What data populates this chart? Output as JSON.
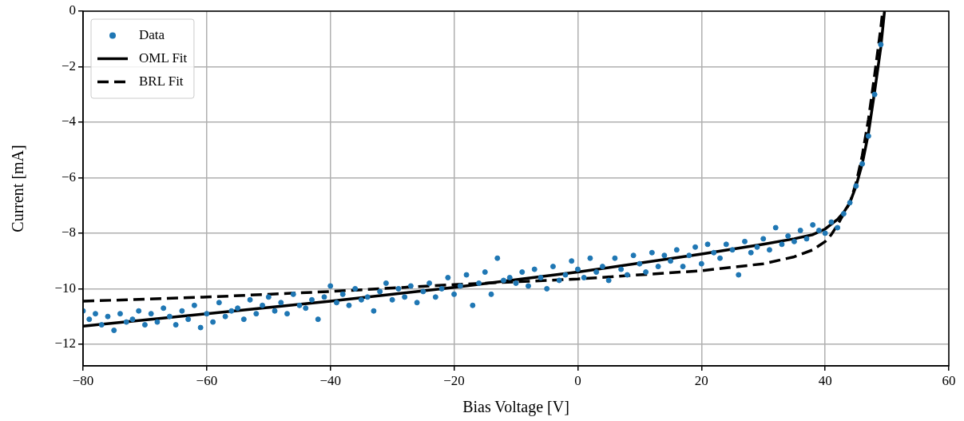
{
  "chart_data": {
    "type": "scatter",
    "xlabel": "Bias Voltage [V]",
    "ylabel": "Current [mA]",
    "xlim": [
      -80,
      60
    ],
    "ylim": [
      -12.78,
      0
    ],
    "xticks": [
      {
        "value": -80,
        "label": "−80"
      },
      {
        "value": -60,
        "label": "−60"
      },
      {
        "value": -40,
        "label": "−40"
      },
      {
        "value": -20,
        "label": "−20"
      },
      0,
      20,
      40,
      60
    ],
    "yticks": [
      {
        "value": -12,
        "label": "−12"
      },
      {
        "value": -10,
        "label": "−10"
      },
      {
        "value": -8,
        "label": "−8"
      },
      {
        "value": -6,
        "label": "−6"
      },
      {
        "value": -4,
        "label": "−4"
      },
      {
        "value": -2,
        "label": "−2"
      },
      0
    ],
    "grid": true,
    "legend": "top left",
    "series": [
      {
        "name": "Data",
        "type": "scatter",
        "color": "#1f77b4",
        "marker": "circle",
        "x": [
          -80,
          -79,
          -78,
          -77,
          -76,
          -75,
          -74,
          -73,
          -72,
          -71,
          -70,
          -69,
          -68,
          -67,
          -66,
          -65,
          -64,
          -63,
          -62,
          -61,
          -60,
          -59,
          -58,
          -57,
          -56,
          -55,
          -54,
          -53,
          -52,
          -51,
          -50,
          -49,
          -48,
          -47,
          -46,
          -45,
          -44,
          -43,
          -42,
          -41,
          -40,
          -39,
          -38,
          -37,
          -36,
          -35,
          -34,
          -33,
          -32,
          -31,
          -30,
          -29,
          -28,
          -27,
          -26,
          -25,
          -24,
          -23,
          -22,
          -21,
          -20,
          -19,
          -18,
          -17,
          -16,
          -15,
          -14,
          -13,
          -12,
          -11,
          -10,
          -9,
          -8,
          -7,
          -6,
          -5,
          -4,
          -3,
          -2,
          -1,
          0,
          1,
          2,
          3,
          4,
          5,
          6,
          7,
          8,
          9,
          10,
          11,
          12,
          13,
          14,
          15,
          16,
          17,
          18,
          19,
          20,
          21,
          22,
          23,
          24,
          25,
          26,
          27,
          28,
          29,
          30,
          31,
          32,
          33,
          34,
          35,
          36,
          37,
          38,
          39,
          40,
          41,
          42,
          43,
          44,
          45,
          46,
          47,
          48,
          49
        ],
        "values": [
          -10.8,
          -11.1,
          -10.9,
          -11.3,
          -11.0,
          -11.5,
          -10.9,
          -11.2,
          -11.1,
          -10.8,
          -11.3,
          -10.9,
          -11.2,
          -10.7,
          -11.0,
          -11.3,
          -10.8,
          -11.1,
          -10.6,
          -11.4,
          -10.9,
          -11.2,
          -10.5,
          -11.0,
          -10.8,
          -10.7,
          -11.1,
          -10.4,
          -10.9,
          -10.6,
          -10.3,
          -10.8,
          -10.5,
          -10.9,
          -10.2,
          -10.6,
          -10.7,
          -10.4,
          -11.1,
          -10.3,
          -9.9,
          -10.5,
          -10.2,
          -10.6,
          -10.0,
          -10.4,
          -10.3,
          -10.8,
          -10.1,
          -9.8,
          -10.4,
          -10.0,
          -10.3,
          -9.9,
          -10.5,
          -10.1,
          -9.8,
          -10.3,
          -10.0,
          -9.6,
          -10.2,
          -9.9,
          -9.5,
          -10.6,
          -9.8,
          -9.4,
          -10.2,
          -8.9,
          -9.7,
          -9.6,
          -9.8,
          -9.4,
          -9.9,
          -9.3,
          -9.6,
          -10.0,
          -9.2,
          -9.7,
          -9.5,
          -9.0,
          -9.3,
          -9.6,
          -8.9,
          -9.4,
          -9.2,
          -9.7,
          -8.9,
          -9.3,
          -9.5,
          -8.8,
          -9.1,
          -9.4,
          -8.7,
          -9.2,
          -8.8,
          -9.0,
          -8.6,
          -9.2,
          -8.8,
          -8.5,
          -9.1,
          -8.4,
          -8.7,
          -8.9,
          -8.4,
          -8.6,
          -9.5,
          -8.3,
          -8.7,
          -8.5,
          -8.2,
          -8.6,
          -7.8,
          -8.4,
          -8.1,
          -8.3,
          -7.9,
          -8.2,
          -7.7,
          -7.9,
          -8.0,
          -7.6,
          -7.8,
          -7.3,
          -6.9,
          -6.3,
          -5.5,
          -4.5,
          -3.0,
          -1.2
        ]
      },
      {
        "name": "OML Fit",
        "type": "line",
        "color": "#000000",
        "marker": "none",
        "line_style": "solid",
        "x": [
          -80,
          -60,
          -40,
          -20,
          0,
          20,
          30,
          35,
          38,
          40,
          42,
          43,
          44,
          45,
          46,
          47,
          48,
          49,
          49.6
        ],
        "values": [
          -11.35,
          -10.9,
          -10.45,
          -9.95,
          -9.4,
          -8.75,
          -8.4,
          -8.2,
          -8.05,
          -7.85,
          -7.5,
          -7.25,
          -6.9,
          -6.3,
          -5.5,
          -4.4,
          -2.9,
          -1.3,
          0
        ]
      },
      {
        "name": "BRL Fit",
        "type": "line",
        "color": "#000000",
        "marker": "none",
        "line_style": "dashed",
        "x": [
          -80,
          -60,
          -40,
          -20,
          0,
          20,
          30,
          35,
          38,
          40,
          41,
          42,
          43,
          44,
          45,
          46,
          47,
          48,
          49,
          49.3
        ],
        "values": [
          -10.45,
          -10.3,
          -10.1,
          -9.85,
          -9.65,
          -9.35,
          -9.1,
          -8.85,
          -8.6,
          -8.3,
          -8.05,
          -7.7,
          -7.3,
          -6.9,
          -6.2,
          -5.2,
          -3.9,
          -2.3,
          -0.6,
          0
        ]
      }
    ]
  }
}
